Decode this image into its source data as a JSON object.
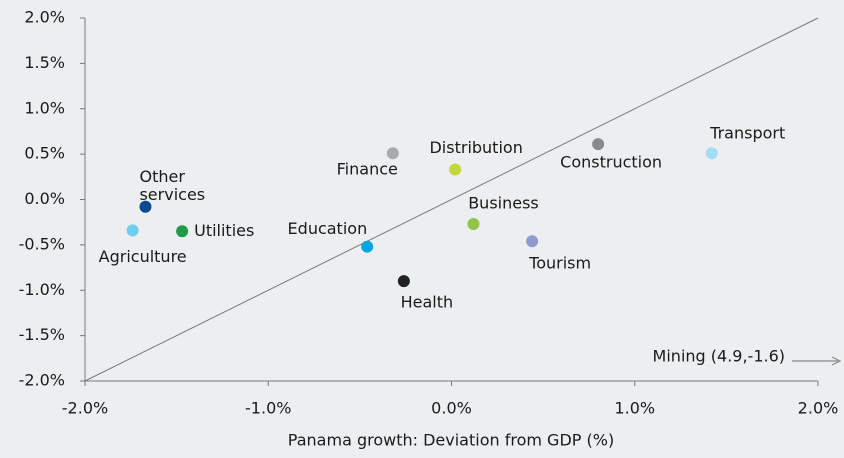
{
  "chart_data": {
    "type": "scatter",
    "xlabel": "Panama growth: Deviation from GDP (%)",
    "xlim": [
      -2,
      2
    ],
    "ylim": [
      -2,
      2
    ],
    "xticks": [
      {
        "value": -2,
        "label": "-2.0%"
      },
      {
        "value": -1,
        "label": "-1.0%"
      },
      {
        "value": 0,
        "label": "0.0%"
      },
      {
        "value": 1,
        "label": "1.0%"
      },
      {
        "value": 2,
        "label": "2.0%"
      }
    ],
    "yticks": [
      {
        "value": -2,
        "label": "-2.0%"
      },
      {
        "value": -1.5,
        "label": "-1.5%"
      },
      {
        "value": -1,
        "label": "-1.0%"
      },
      {
        "value": -0.5,
        "label": "-0.5%"
      },
      {
        "value": 0,
        "label": "0.0%"
      },
      {
        "value": 0.5,
        "label": "0.5%"
      },
      {
        "value": 1,
        "label": "1.0%"
      },
      {
        "value": 1.5,
        "label": "1.5%"
      },
      {
        "value": 2,
        "label": "2.0%"
      }
    ],
    "points": [
      {
        "label": "Other services",
        "x": -1.67,
        "y": -0.08,
        "color": "#0b4a8f"
      },
      {
        "label": "Agriculture",
        "x": -1.74,
        "y": -0.34,
        "color": "#6fcdf0"
      },
      {
        "label": "Utilities",
        "x": -1.47,
        "y": -0.35,
        "color": "#1e9a4a"
      },
      {
        "label": "Finance",
        "x": -0.32,
        "y": 0.51,
        "color": "#a9aaad"
      },
      {
        "label": "Distribution",
        "x": 0.02,
        "y": 0.33,
        "color": "#c3d83a"
      },
      {
        "label": "Education",
        "x": -0.46,
        "y": -0.52,
        "color": "#00a6e0"
      },
      {
        "label": "Business",
        "x": 0.12,
        "y": -0.27,
        "color": "#8fc54a"
      },
      {
        "label": "Health",
        "x": -0.26,
        "y": -0.9,
        "color": "#222222"
      },
      {
        "label": "Tourism",
        "x": 0.44,
        "y": -0.46,
        "color": "#8e9ccc"
      },
      {
        "label": "Construction",
        "x": 0.8,
        "y": 0.61,
        "color": "#888a8d"
      },
      {
        "label": "Transport",
        "x": 1.42,
        "y": 0.51,
        "color": "#a5dcf5"
      }
    ],
    "annotation": "Mining (4.9,-1.6)"
  }
}
